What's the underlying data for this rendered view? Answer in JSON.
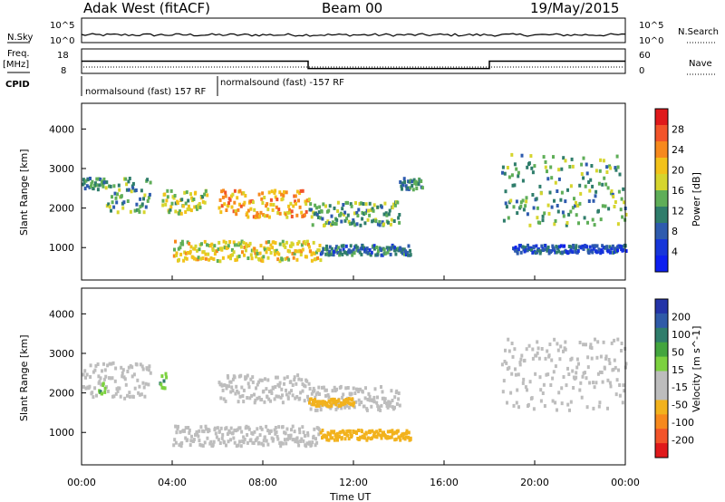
{
  "header": {
    "station": "Adak West (fitACF)",
    "beam": "Beam 00",
    "date": "19/May/2015"
  },
  "panels": {
    "nsky_label": "N.Sky",
    "nsearch_label": "N.Search",
    "nsky_ticks": [
      "10^5",
      "10^0"
    ],
    "nsearch_ticks": [
      "10^5",
      "10^0"
    ],
    "freq_label": "Freq.",
    "freq_unit": "[MHz]",
    "freq_ticks": [
      "18",
      "8"
    ],
    "nave_label": "Nave",
    "nave_ticks": [
      "60",
      "0"
    ],
    "cpid_label": "CPID",
    "cpid_mode1": "normalsound (fast) 157 RF",
    "cpid_mode2": "normalsound (fast) -157 RF"
  },
  "axes": {
    "ylabel": "Slant Range [km]",
    "yticks": [
      "4000",
      "3000",
      "2000",
      "1000"
    ],
    "xticks": [
      "00:00",
      "04:00",
      "08:00",
      "12:00",
      "16:00",
      "20:00",
      "00:00"
    ],
    "xlabel": "Time UT"
  },
  "colorbars": {
    "power": {
      "label": "Power [dB]",
      "ticks": [
        "28",
        "24",
        "20",
        "16",
        "12",
        "8",
        "4"
      ],
      "colors": [
        "#e0191b",
        "#f2542a",
        "#f7891d",
        "#f2c21a",
        "#d6d52e",
        "#5fae58",
        "#2f7d6b",
        "#2e5bae",
        "#1736d9",
        "#0d1ff0"
      ]
    },
    "velocity": {
      "label": "Velocity [m s^-1]",
      "ticks": [
        "200",
        "100",
        "50",
        "15",
        "-15",
        "-50",
        "-100",
        "-200"
      ],
      "colors": [
        "#2434a8",
        "#2f5aa8",
        "#2f7d6b",
        "#43a53e",
        "#7cd13f",
        "#bdbdbd",
        "#bdbdbd",
        "#f2b21d",
        "#f7891d",
        "#f2542a",
        "#e0191b"
      ]
    }
  },
  "chart_data": {
    "type": "heatmap",
    "title": "Adak West (fitACF)",
    "subtitle": "Beam 00 — 19/May/2015",
    "xlabel": "Time UT",
    "ylabel": "Slant Range [km]",
    "xlim_hours": [
      0,
      24
    ],
    "ylim_km": [
      180,
      4650
    ],
    "freq_mhz": [
      {
        "from_hour": 0,
        "to_hour": 10,
        "value": 13
      },
      {
        "from_hour": 10,
        "to_hour": 18,
        "value": 10
      },
      {
        "from_hour": 18,
        "to_hour": 24,
        "value": 13
      }
    ],
    "power_bands": [
      {
        "t": [
          0,
          1
        ],
        "r": [
          2500,
          2800
        ],
        "db": 10
      },
      {
        "t": [
          1,
          3
        ],
        "r": [
          1900,
          2800
        ],
        "db": 12
      },
      {
        "t": [
          3.5,
          5.5
        ],
        "r": [
          1900,
          2500
        ],
        "db": 16
      },
      {
        "t": [
          6,
          10
        ],
        "r": [
          1800,
          2500
        ],
        "db": 22
      },
      {
        "t": [
          10,
          14
        ],
        "r": [
          1600,
          2200
        ],
        "db": 12
      },
      {
        "t": [
          14,
          15
        ],
        "r": [
          2500,
          2800
        ],
        "db": 10
      },
      {
        "t": [
          18.5,
          24
        ],
        "r": [
          1600,
          3400
        ],
        "db": 12
      },
      {
        "t": [
          4,
          10.5
        ],
        "r": [
          700,
          1200
        ],
        "db": 18
      },
      {
        "t": [
          10.5,
          14.5
        ],
        "r": [
          850,
          1100
        ],
        "db": 8
      },
      {
        "t": [
          19,
          24
        ],
        "r": [
          900,
          1100
        ],
        "db": 6
      }
    ],
    "velocity_bands": [
      {
        "t": [
          0,
          3
        ],
        "r": [
          1900,
          2800
        ],
        "ms": 0
      },
      {
        "t": [
          0.7,
          1
        ],
        "r": [
          2000,
          2300
        ],
        "ms": 25
      },
      {
        "t": [
          3.4,
          3.7
        ],
        "r": [
          2000,
          2600
        ],
        "ms": 25
      },
      {
        "t": [
          6,
          10
        ],
        "r": [
          1800,
          2500
        ],
        "ms": 0
      },
      {
        "t": [
          10,
          14
        ],
        "r": [
          1600,
          2200
        ],
        "ms": 0
      },
      {
        "t": [
          10,
          12
        ],
        "r": [
          1700,
          1900
        ],
        "ms": -30
      },
      {
        "t": [
          18.5,
          24
        ],
        "r": [
          1600,
          3400
        ],
        "ms": 0
      },
      {
        "t": [
          4,
          10.5
        ],
        "r": [
          700,
          1200
        ],
        "ms": 0
      },
      {
        "t": [
          10.5,
          14.5
        ],
        "r": [
          850,
          1100
        ],
        "ms": -30
      }
    ]
  }
}
